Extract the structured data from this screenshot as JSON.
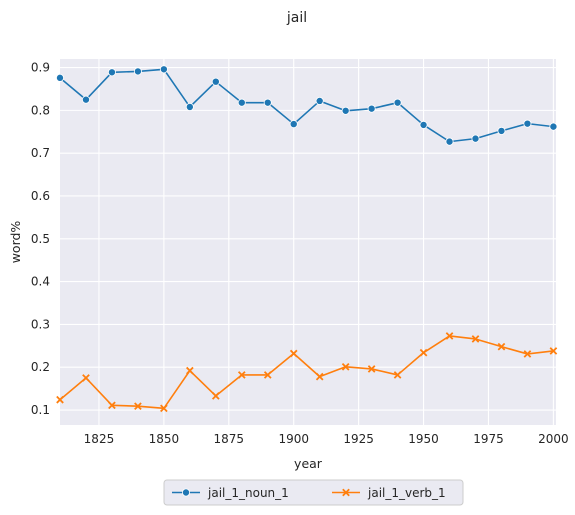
{
  "chart_data": {
    "type": "line",
    "title": "jail",
    "xlabel": "year",
    "ylabel": "word%",
    "xlim": [
      1810,
      2001
    ],
    "ylim": [
      0.065,
      0.92
    ],
    "xticks": [
      1825,
      1850,
      1875,
      1900,
      1925,
      1950,
      1975,
      2000
    ],
    "yticks": [
      0.1,
      0.2,
      0.3,
      0.4,
      0.5,
      0.6,
      0.7,
      0.8,
      0.9
    ],
    "x": [
      1810,
      1820,
      1830,
      1840,
      1850,
      1860,
      1870,
      1880,
      1890,
      1900,
      1910,
      1920,
      1930,
      1940,
      1950,
      1960,
      1970,
      1980,
      1990,
      2000
    ],
    "series": [
      {
        "name": "jail_1_noun_1",
        "color": "#1f77b4",
        "marker": "circle",
        "values": [
          0.876,
          0.825,
          0.889,
          0.891,
          0.896,
          0.808,
          0.867,
          0.818,
          0.818,
          0.768,
          0.822,
          0.799,
          0.804,
          0.818,
          0.766,
          0.727,
          0.734,
          0.752,
          0.769,
          0.762
        ]
      },
      {
        "name": "jail_1_verb_1",
        "color": "#ff7f0e",
        "marker": "x",
        "values": [
          0.124,
          0.175,
          0.111,
          0.109,
          0.104,
          0.192,
          0.133,
          0.182,
          0.182,
          0.232,
          0.178,
          0.201,
          0.196,
          0.182,
          0.234,
          0.273,
          0.266,
          0.248,
          0.231,
          0.238
        ]
      }
    ],
    "grid": true,
    "legend": "bottom-center"
  }
}
